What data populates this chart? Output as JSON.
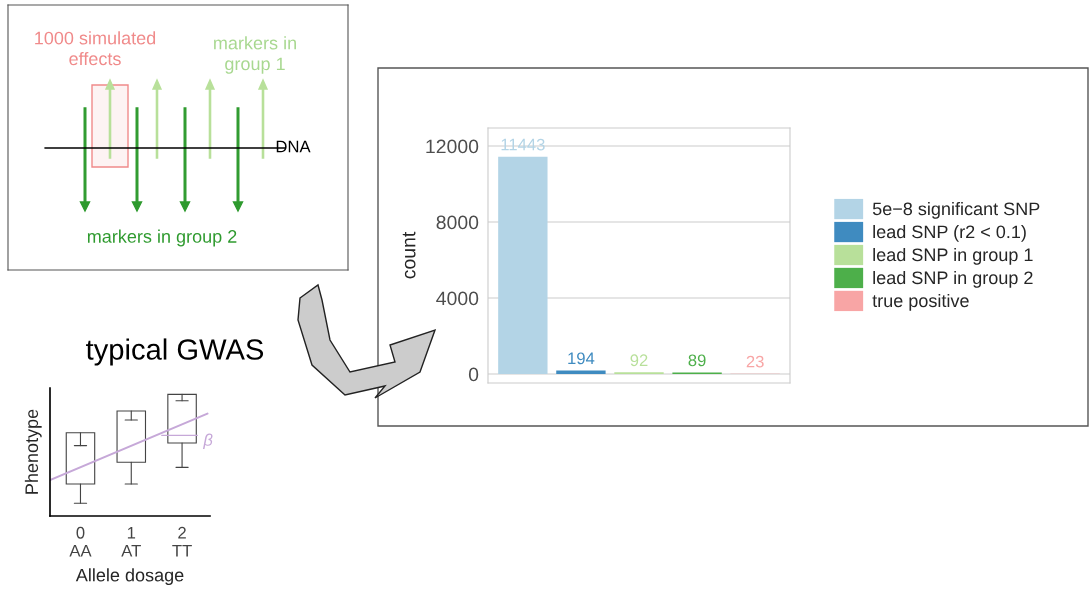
{
  "chart_data": [
    {
      "type": "bar",
      "categories": [
        null,
        null,
        null,
        null,
        null
      ],
      "series": [
        {
          "name": "5e−8 significant SNP",
          "color": "#b3d4e6",
          "values": [
            11443,
            null,
            null,
            null,
            null
          ]
        },
        {
          "name": "lead SNP (r2 < 0.1)",
          "color": "#3f8bc0",
          "values": [
            null,
            194,
            null,
            null,
            null
          ]
        },
        {
          "name": "lead SNP in group 1",
          "color": "#b8e09a",
          "values": [
            null,
            null,
            92,
            null,
            null
          ]
        },
        {
          "name": "lead SNP in group 2",
          "color": "#4daf4a",
          "values": [
            null,
            null,
            null,
            89,
            null
          ]
        },
        {
          "name": "true positive",
          "color": "#f8a5a5",
          "values": [
            null,
            null,
            null,
            null,
            23
          ]
        }
      ],
      "ylabel": "count",
      "ylim": [
        -470,
        12950
      ],
      "yticks": [
        0,
        4000,
        8000,
        12000
      ],
      "grid": "y",
      "legend": "right",
      "data_labels": true
    },
    {
      "type": "other",
      "annotations": [
        "1000 simulated effects",
        "markers in group 1",
        "DNA",
        "markers in group 2",
        "typical GWAS"
      ]
    },
    {
      "type": "other",
      "categories": [
        "0\nAA",
        "1\nAT",
        "2\nTT"
      ],
      "xlabel": "Allele dosage",
      "ylabel": "Phenotype",
      "annotations": [
        "β"
      ]
    }
  ]
}
